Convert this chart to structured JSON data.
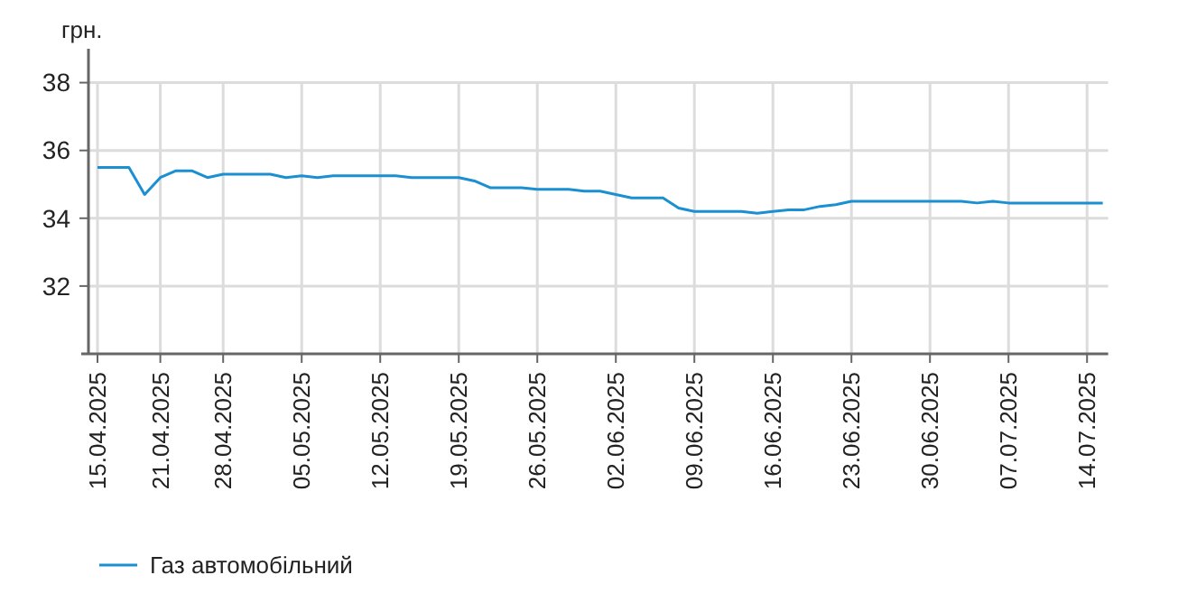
{
  "chart_data": {
    "type": "line",
    "ylabel": "грн.",
    "categories": [
      "15.04.2025",
      null,
      null,
      null,
      "21.04.2025",
      null,
      null,
      null,
      "28.04.2025",
      null,
      null,
      null,
      null,
      "05.05.2025",
      null,
      null,
      null,
      null,
      "12.05.2025",
      null,
      null,
      null,
      null,
      "19.05.2025",
      null,
      null,
      null,
      null,
      "26.05.2025",
      null,
      null,
      null,
      null,
      "02.06.2025",
      null,
      null,
      null,
      null,
      "09.06.2025",
      null,
      null,
      null,
      null,
      "16.06.2025",
      null,
      null,
      null,
      null,
      "23.06.2025",
      null,
      null,
      null,
      null,
      "30.06.2025",
      null,
      null,
      null,
      null,
      "07.07.2025",
      null,
      null,
      null,
      null,
      "14.07.2025",
      null
    ],
    "series": [
      {
        "name": "Газ автомобільний",
        "color": "#1a8fd1",
        "values": [
          35.5,
          35.5,
          35.5,
          34.7,
          35.2,
          35.4,
          35.4,
          35.2,
          35.3,
          35.3,
          35.3,
          35.3,
          35.2,
          35.25,
          35.2,
          35.25,
          35.25,
          35.25,
          35.25,
          35.25,
          35.2,
          35.2,
          35.2,
          35.2,
          35.1,
          34.9,
          34.9,
          34.9,
          34.85,
          34.85,
          34.85,
          34.8,
          34.8,
          34.7,
          34.6,
          34.6,
          34.6,
          34.3,
          34.2,
          34.2,
          34.2,
          34.2,
          34.15,
          34.2,
          34.25,
          34.25,
          34.35,
          34.4,
          34.5,
          34.5,
          34.5,
          34.5,
          34.5,
          34.5,
          34.5,
          34.5,
          34.45,
          34.5,
          34.45,
          34.45,
          34.45,
          34.45,
          34.45,
          34.45,
          34.45
        ]
      }
    ],
    "ylim": [
      30,
      39
    ],
    "yticks": [
      32,
      34,
      36,
      38
    ],
    "grid": true,
    "legend": "bottom left",
    "marker": "none",
    "line_style": "solid"
  }
}
